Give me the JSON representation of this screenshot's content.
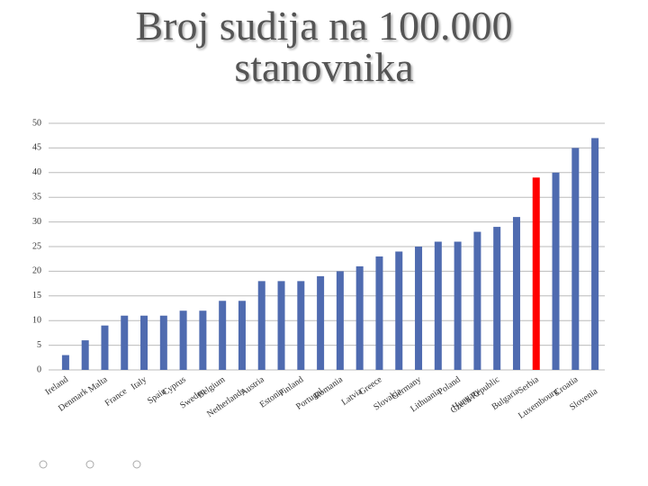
{
  "chart_data": {
    "type": "bar",
    "title": "Broj sudija na 100.000 stanovnika",
    "categories": [
      "Ireland",
      "Denmark",
      "Malta",
      "France",
      "Italy",
      "Spain",
      "Cyprus",
      "Sweden",
      "Belgium",
      "Netherlands",
      "Austria",
      "Estonia",
      "Finland",
      "Portugal",
      "Romania",
      "Latvia",
      "Greece",
      "Slovakia",
      "Germany",
      "Lithuania",
      "Poland",
      "Hungary",
      "Czech Republic",
      "Bulgaria",
      "Serbia",
      "Luxembourg",
      "Croatia",
      "Slovenia"
    ],
    "values": [
      3,
      6,
      9,
      11,
      11,
      11,
      12,
      12,
      14,
      14,
      18,
      18,
      18,
      19,
      20,
      21,
      23,
      24,
      25,
      26,
      26,
      28,
      29,
      31,
      39,
      40,
      45,
      47
    ],
    "colors": [
      "#4f6bb0",
      "#4f6bb0",
      "#4f6bb0",
      "#4f6bb0",
      "#4f6bb0",
      "#4f6bb0",
      "#4f6bb0",
      "#4f6bb0",
      "#4f6bb0",
      "#4f6bb0",
      "#4f6bb0",
      "#4f6bb0",
      "#4f6bb0",
      "#4f6bb0",
      "#4f6bb0",
      "#4f6bb0",
      "#4f6bb0",
      "#4f6bb0",
      "#4f6bb0",
      "#4f6bb0",
      "#4f6bb0",
      "#4f6bb0",
      "#4f6bb0",
      "#4f6bb0",
      "#ff0000",
      "#4f6bb0",
      "#4f6bb0",
      "#4f6bb0"
    ],
    "ylim": [
      0,
      50
    ],
    "yticks": [
      0,
      5,
      10,
      15,
      20,
      25,
      30,
      35,
      40,
      45,
      50
    ],
    "grid": true
  }
}
